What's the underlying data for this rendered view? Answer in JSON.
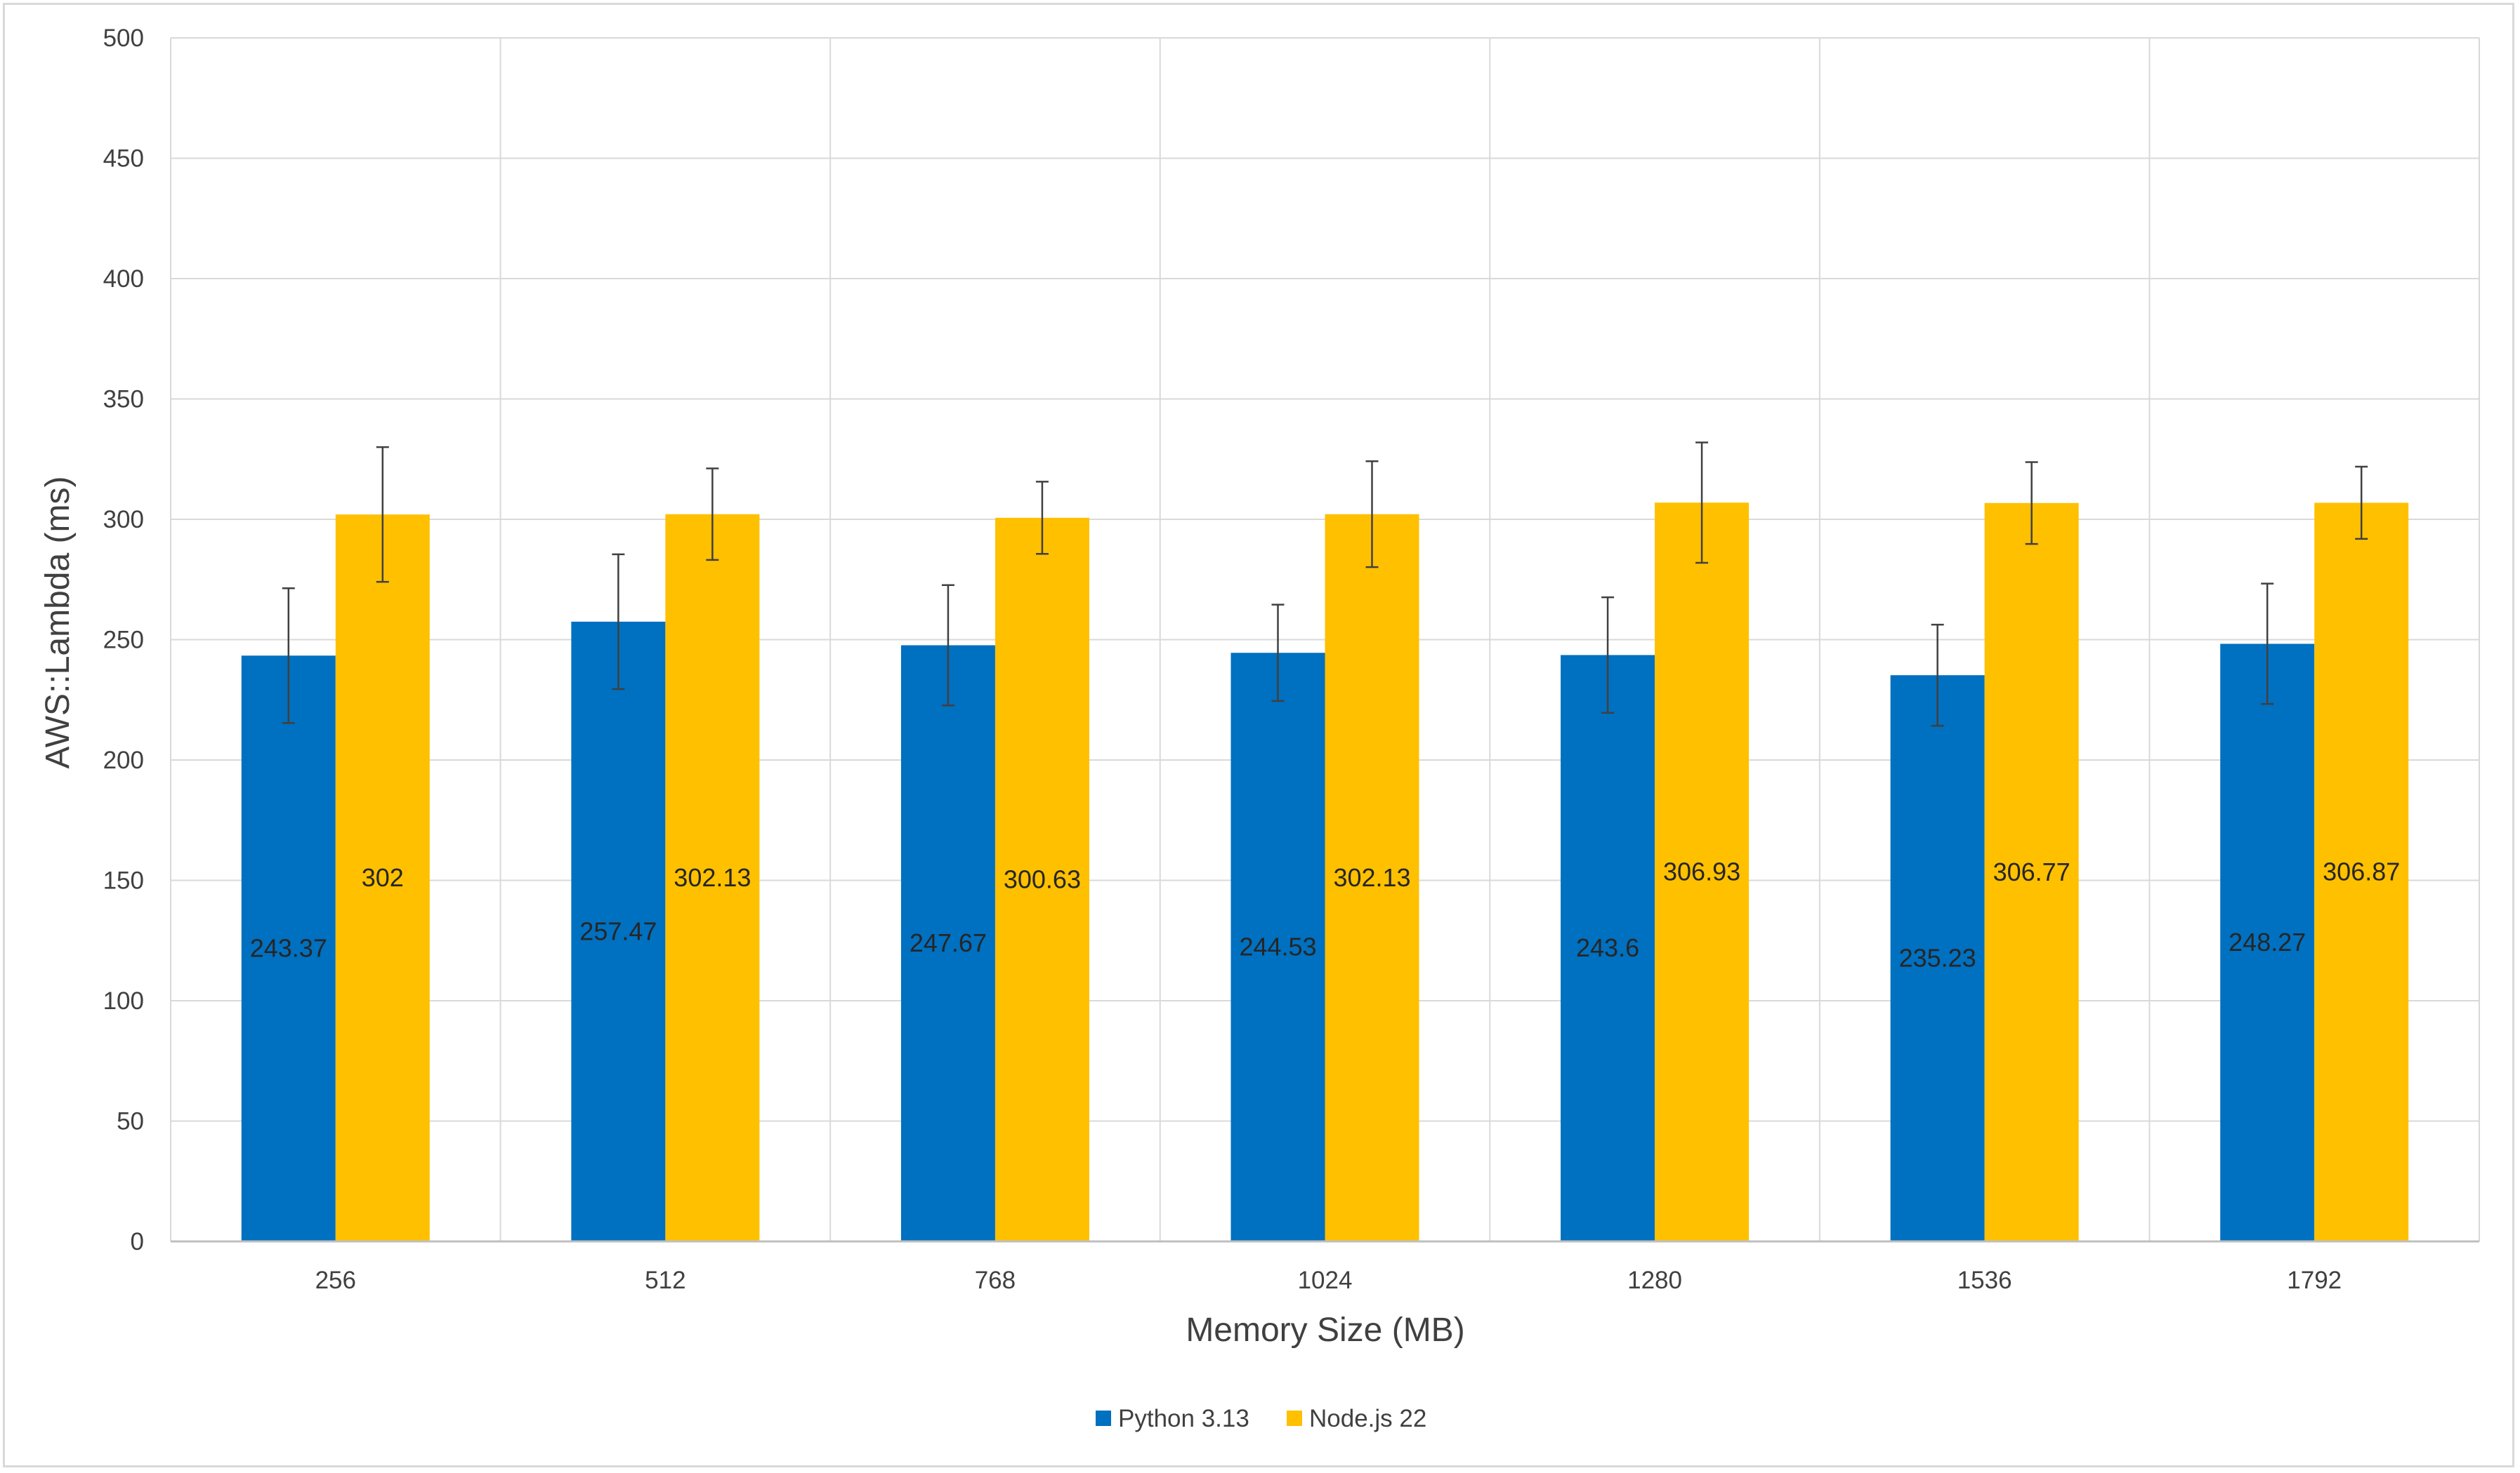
{
  "chart_data": {
    "type": "bar",
    "title": "",
    "xlabel": "Memory Size (MB)",
    "ylabel": "AWS::Lambda (ms)",
    "ylim": [
      0,
      500
    ],
    "ytick_step": 50,
    "grid": true,
    "legend_position": "bottom-center",
    "categories": [
      "256",
      "512",
      "768",
      "1024",
      "1280",
      "1536",
      "1792"
    ],
    "series": [
      {
        "name": "Python 3.13",
        "color": "#0070c0",
        "values": [
          243.37,
          257.47,
          247.67,
          244.53,
          243.6,
          235.23,
          248.27
        ],
        "value_labels": [
          "243.37",
          "257.47",
          "247.67",
          "244.53",
          "243.6",
          "235.23",
          "248.27"
        ],
        "error": [
          28,
          28,
          25,
          20,
          24,
          21,
          25
        ]
      },
      {
        "name": "Node.js 22",
        "color": "#ffc000",
        "values": [
          302,
          302.13,
          300.63,
          302.13,
          306.93,
          306.77,
          306.87
        ],
        "value_labels": [
          "302",
          "302.13",
          "300.63",
          "302.13",
          "306.93",
          "306.77",
          "306.87"
        ],
        "error": [
          28,
          19,
          15,
          22,
          25,
          17,
          15
        ]
      }
    ]
  }
}
